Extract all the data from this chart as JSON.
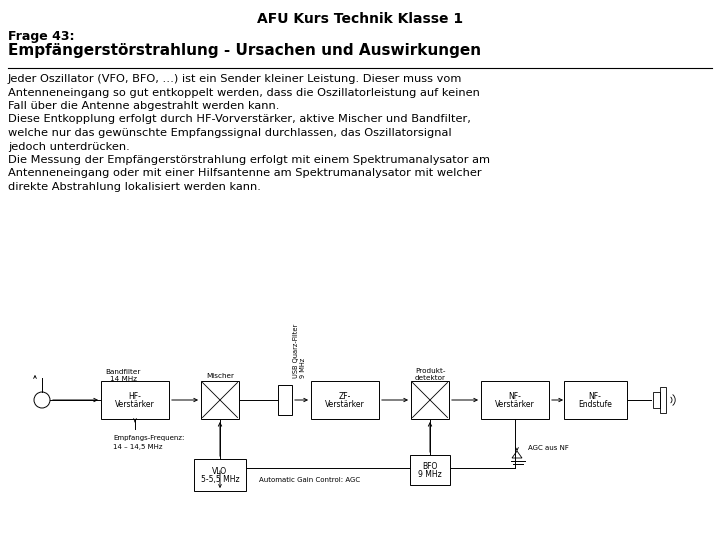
{
  "title": "AFU Kurs Technik Klasse 1",
  "frage": "Frage 43:",
  "subtitle": "Empfängerstörstrahlung - Ursachen und Auswirkungen",
  "body_text": [
    "Jeder Oszillator (VFO, BFO, …) ist ein Sender kleiner Leistung. Dieser muss vom",
    "Antenneneingang so gut entkoppelt werden, dass die Oszillatorleistung auf keinen",
    "Fall über die Antenne abgestrahlt werden kann.",
    "Diese Entkopplung erfolgt durch HF-Vorverstärker, aktive Mischer und Bandfilter,",
    "welche nur das gewünschte Empfangssignal durchlassen, das Oszillatorsignal",
    "jedoch unterdrücken.",
    "Die Messung der Empfängerstörstrahlung erfolgt mit einem Spektrumanalysator am",
    "Antenneneingang oder mit einer Hilfsantenne am Spektrumanalysator mit welcher",
    "direkte Abstrahlung lokalisiert werden kann."
  ],
  "bg_color": "#ffffff",
  "text_color": "#000000"
}
